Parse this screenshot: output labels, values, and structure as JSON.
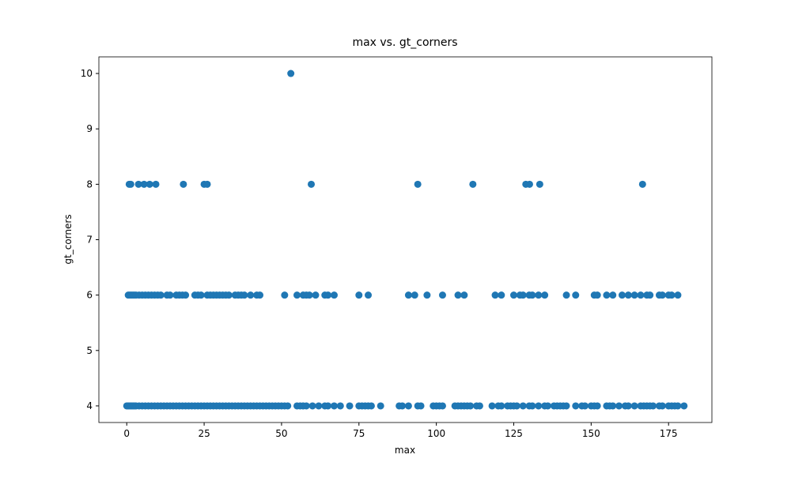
{
  "chart_data": {
    "type": "scatter",
    "title": "max vs. gt_corners",
    "x_label": "max",
    "y_label": "gt_corners",
    "xlim": [
      -9,
      189
    ],
    "ylim": [
      3.7,
      10.3
    ],
    "xticks": [
      0,
      25,
      50,
      75,
      100,
      125,
      150,
      175
    ],
    "yticks": [
      4,
      5,
      6,
      7,
      8,
      9,
      10
    ],
    "series": [
      {
        "color": "#1f77b4",
        "x": [
          0,
          0.5,
          1,
          1.5,
          2,
          2.5,
          3,
          4,
          5,
          6,
          7,
          8,
          9,
          10,
          11,
          12,
          13,
          14,
          15,
          16,
          17,
          18,
          19,
          20,
          21,
          22,
          23,
          24,
          25,
          26,
          27,
          28,
          29,
          30,
          31,
          32,
          33,
          34,
          35,
          36,
          37,
          38,
          39,
          40,
          41,
          42,
          43,
          44,
          45,
          46,
          47,
          48,
          49,
          50,
          51,
          52,
          55,
          56,
          57,
          58,
          60,
          62,
          64,
          65,
          67,
          69,
          72,
          75,
          76,
          77,
          78,
          79,
          82,
          88,
          89,
          91,
          94,
          95,
          99,
          100,
          101,
          102,
          106,
          107,
          108,
          109,
          110,
          111,
          113,
          114,
          118,
          120,
          121,
          123,
          124,
          125,
          126,
          128,
          130,
          131,
          133,
          135,
          136,
          138,
          139,
          140,
          141,
          142,
          145,
          147,
          148,
          150,
          151,
          152,
          155,
          156,
          157,
          159,
          161,
          162,
          164,
          166,
          167,
          168,
          169,
          170,
          172,
          173,
          175,
          176,
          177,
          178,
          180
        ],
        "values": [
          4,
          4,
          4,
          4,
          4,
          4,
          4,
          4,
          4,
          4,
          4,
          4,
          4,
          4,
          4,
          4,
          4,
          4,
          4,
          4,
          4,
          4,
          4,
          4,
          4,
          4,
          4,
          4,
          4,
          4,
          4,
          4,
          4,
          4,
          4,
          4,
          4,
          4,
          4,
          4,
          4,
          4,
          4,
          4,
          4,
          4,
          4,
          4,
          4,
          4,
          4,
          4,
          4,
          4,
          4,
          4,
          4,
          4,
          4,
          4,
          4,
          4,
          4,
          4,
          4,
          4,
          4,
          4,
          4,
          4,
          4,
          4,
          4,
          4,
          4,
          4,
          4,
          4,
          4,
          4,
          4,
          4,
          4,
          4,
          4,
          4,
          4,
          4,
          4,
          4,
          4,
          4,
          4,
          4,
          4,
          4,
          4,
          4,
          4,
          4,
          4,
          4,
          4,
          4,
          4,
          4,
          4,
          4,
          4,
          4,
          4,
          4,
          4,
          4,
          4,
          4,
          4,
          4,
          4,
          4,
          4,
          4,
          4,
          4,
          4,
          4,
          4,
          4,
          4,
          4,
          4,
          4,
          4
        ]
      },
      {
        "color": "#1f77b4",
        "x": [
          0.5,
          1,
          1.5,
          2,
          2.5,
          3,
          4,
          5,
          6,
          7,
          8,
          9,
          10,
          11,
          13,
          14,
          16,
          17,
          18,
          19,
          22,
          23,
          24,
          26,
          27,
          28,
          29,
          30,
          31,
          32,
          33,
          35,
          36,
          37,
          38,
          40,
          42,
          43,
          51,
          55,
          57,
          58,
          59,
          61,
          64,
          65,
          67,
          75,
          78,
          91,
          93,
          97,
          102,
          107,
          109,
          119,
          121,
          125,
          127,
          128,
          130,
          131,
          133,
          135,
          142,
          145,
          151,
          152,
          155,
          157,
          160,
          162,
          164,
          166,
          168,
          169,
          172,
          173,
          175,
          176,
          178
        ],
        "values": [
          6,
          6,
          6,
          6,
          6,
          6,
          6,
          6,
          6,
          6,
          6,
          6,
          6,
          6,
          6,
          6,
          6,
          6,
          6,
          6,
          6,
          6,
          6,
          6,
          6,
          6,
          6,
          6,
          6,
          6,
          6,
          6,
          6,
          6,
          6,
          6,
          6,
          6,
          6,
          6,
          6,
          6,
          6,
          6,
          6,
          6,
          6,
          6,
          6,
          6,
          6,
          6,
          6,
          6,
          6,
          6,
          6,
          6,
          6,
          6,
          6,
          6,
          6,
          6,
          6,
          6,
          6,
          6,
          6,
          6,
          6,
          6,
          6,
          6,
          6,
          6,
          6,
          6,
          6,
          6,
          6
        ]
      },
      {
        "color": "#1f77b4",
        "x": [
          0.8,
          1.3,
          3.8,
          5.6,
          7.4,
          9.4,
          18.3,
          25,
          26,
          59.6,
          94,
          111.8,
          128.9,
          130.1,
          133.4,
          166.6
        ],
        "values": [
          8,
          8,
          8,
          8,
          8,
          8,
          8,
          8,
          8,
          8,
          8,
          8,
          8,
          8,
          8,
          8
        ]
      },
      {
        "color": "#1f77b4",
        "x": [
          53
        ],
        "values": [
          10
        ]
      }
    ]
  }
}
